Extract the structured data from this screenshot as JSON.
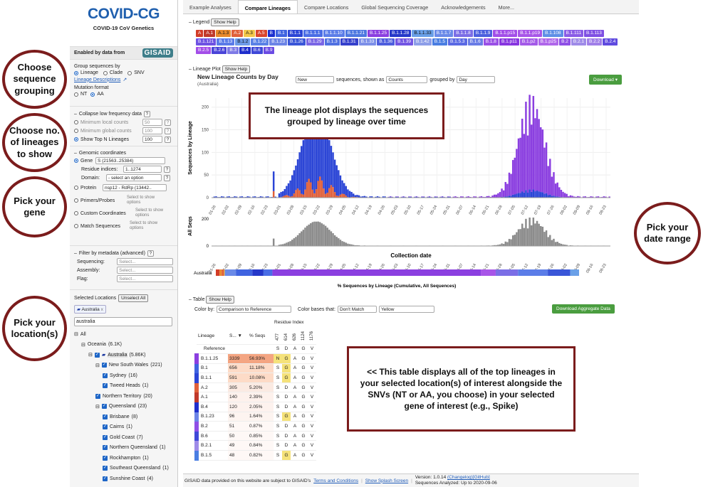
{
  "app": {
    "logo": "COVID-CG",
    "subtitle": "COVID-19 CoV Genetics",
    "enabled_by": "Enabled by data from",
    "gisaid": "GISAID"
  },
  "tabs": [
    "Example Analyses",
    "Compare Lineages",
    "Compare Locations",
    "Global Sequencing Coverage",
    "Acknowledgements",
    "More..."
  ],
  "active_tab": 1,
  "sidebar": {
    "group_by_label": "Group sequences by",
    "group_options": [
      "Lineage",
      "Clade",
      "SNV"
    ],
    "lineage_desc": "Lineage Descriptions",
    "mutation_format_label": "Mutation format",
    "mutation_options": [
      "NT",
      "AA"
    ],
    "collapse_label": "Collapse low frequency data",
    "collapse_q": "?",
    "min_local": "Minimum local counts",
    "min_local_val": "50",
    "min_global": "Minimum global counts",
    "min_global_val": "100",
    "show_top": "Show Top N Lineages",
    "show_top_val": "100",
    "genomic_label": "Genomic coordinates",
    "gene_label": "Gene",
    "gene_val": "S  (21563..25384)",
    "residue_label": "Residue indices:",
    "residue_val": "1..1274",
    "domain_label": "Domain:",
    "domain_val": "- select an option",
    "protein_label": "Protein",
    "protein_val": "nsp12 - RdRp  (13442..",
    "primers_label": "Primers/Probes",
    "primers_hint": "Select to show options",
    "custom_label": "Custom Coordinates",
    "custom_hint": "Select to show options",
    "match_label": "Match Sequences",
    "match_hint": "Select to show options",
    "filter_label": "Filter by metadata (advanced)",
    "filters": [
      {
        "label": "Sequencing:",
        "val": "Select..."
      },
      {
        "label": "Assembly:",
        "val": "Select..."
      },
      {
        "label": "Flag:",
        "val": "Select..."
      }
    ],
    "selected_locations": "Selected Locations",
    "unselect_all": "Unselect All",
    "location_tag": "Australia",
    "location_tag_x": "x",
    "search_val": "australia",
    "tree": [
      {
        "label": "All",
        "count": "",
        "level": 0,
        "check": false,
        "exp": "⊟"
      },
      {
        "label": "Oceania",
        "count": "(6.1K)",
        "level": 1,
        "check": false,
        "exp": "⊟"
      },
      {
        "label": "Australia",
        "count": "(5.86K)",
        "level": 2,
        "check": true,
        "exp": "⊟",
        "hl": true
      },
      {
        "label": "New South Wales",
        "count": "(221)",
        "level": 3,
        "check": true,
        "exp": "⊟"
      },
      {
        "label": "Sydney",
        "count": "(16)",
        "level": 4,
        "check": true,
        "exp": ""
      },
      {
        "label": "Tweed Heads",
        "count": "(1)",
        "level": 4,
        "check": true,
        "exp": ""
      },
      {
        "label": "Northern Territory",
        "count": "(20)",
        "level": 3,
        "check": true,
        "exp": ""
      },
      {
        "label": "Queensland",
        "count": "(23)",
        "level": 3,
        "check": true,
        "exp": "⊟"
      },
      {
        "label": "Brisbane",
        "count": "(8)",
        "level": 4,
        "check": true,
        "exp": ""
      },
      {
        "label": "Cairns",
        "count": "(1)",
        "level": 4,
        "check": true,
        "exp": ""
      },
      {
        "label": "Gold Coast",
        "count": "(7)",
        "level": 4,
        "check": true,
        "exp": ""
      },
      {
        "label": "Northern Queensland",
        "count": "(1)",
        "level": 4,
        "check": true,
        "exp": ""
      },
      {
        "label": "Rockhampton",
        "count": "(1)",
        "level": 4,
        "check": true,
        "exp": ""
      },
      {
        "label": "Southeast Queensland",
        "count": "(1)",
        "level": 4,
        "check": true,
        "exp": ""
      },
      {
        "label": "Sunshine Coast",
        "count": "(4)",
        "level": 4,
        "check": true,
        "exp": ""
      }
    ]
  },
  "legend": {
    "title": "Legend",
    "help": "Show Help",
    "items": [
      {
        "l": "A",
        "c": "#d23c27",
        "t": "#fff"
      },
      {
        "l": "A.1",
        "c": "#c0392b",
        "t": "#fff"
      },
      {
        "l": "A.1.3",
        "c": "#e8892c",
        "t": "#111"
      },
      {
        "l": "A.2",
        "c": "#e0603a",
        "t": "#fff"
      },
      {
        "l": "A.3",
        "c": "#f2c84b",
        "t": "#111"
      },
      {
        "l": "A.5",
        "c": "#d9462d",
        "t": "#fff"
      },
      {
        "l": "B",
        "c": "#1a2fd0",
        "t": "#fff"
      },
      {
        "l": "B.1",
        "c": "#3f63e0",
        "t": "#fff"
      },
      {
        "l": "B.1.1",
        "c": "#2b45d6",
        "t": "#fff"
      },
      {
        "l": "B.1.1.1",
        "c": "#4a6de5",
        "t": "#fff"
      },
      {
        "l": "B.1.1.10",
        "c": "#5b7de8",
        "t": "#fff"
      },
      {
        "l": "B.1.1.21",
        "c": "#4d78e0",
        "t": "#fff"
      },
      {
        "l": "B.1.1.25",
        "c": "#8b3fe0",
        "t": "#fff"
      },
      {
        "l": "B.1.1.28",
        "c": "#2538c9",
        "t": "#fff"
      },
      {
        "l": "B.1.1.33",
        "c": "#6aa0e8",
        "t": "#111"
      },
      {
        "l": "B.1.1.7",
        "c": "#6a8ae8",
        "t": "#fff"
      },
      {
        "l": "B.1.1.8",
        "c": "#7b6ee6",
        "t": "#fff"
      },
      {
        "l": "B.1.1.9",
        "c": "#4b5fde",
        "t": "#fff"
      },
      {
        "l": "B.1.1.p15",
        "c": "#a24ee8",
        "t": "#fff"
      },
      {
        "l": "B.1.1.p19",
        "c": "#a855e8",
        "t": "#fff"
      },
      {
        "l": "B.1.108",
        "c": "#5f8fe6",
        "t": "#fff"
      },
      {
        "l": "B.1.111",
        "c": "#8a5ce6",
        "t": "#fff"
      },
      {
        "l": "B.1.113",
        "c": "#7f50e3",
        "t": "#fff"
      },
      {
        "l": "B.1.121",
        "c": "#6e52e3",
        "t": "#fff"
      },
      {
        "l": "B.1.13",
        "c": "#5a7be8",
        "t": "#fff"
      },
      {
        "l": "B.1.2",
        "c": "#6c9ae8",
        "t": "#111"
      },
      {
        "l": "B.1.22",
        "c": "#5a82e6",
        "t": "#fff"
      },
      {
        "l": "B.1.23",
        "c": "#6c84e6",
        "t": "#fff"
      },
      {
        "l": "B.1.26",
        "c": "#3a56d8",
        "t": "#fff"
      },
      {
        "l": "B.1.29",
        "c": "#7a66e5",
        "t": "#fff"
      },
      {
        "l": "B.1.3",
        "c": "#5071e2",
        "t": "#fff"
      },
      {
        "l": "B.1.31",
        "c": "#3540cc",
        "t": "#fff"
      },
      {
        "l": "B.1.33",
        "c": "#7c8fe8",
        "t": "#fff"
      },
      {
        "l": "B.1.36",
        "c": "#4e5ede",
        "t": "#fff"
      },
      {
        "l": "B.1.39",
        "c": "#7355e3",
        "t": "#fff"
      },
      {
        "l": "B.1.42",
        "c": "#8d9ee8",
        "t": "#fff"
      },
      {
        "l": "B.1.5",
        "c": "#4a7ee2",
        "t": "#fff"
      },
      {
        "l": "B.1.5.3",
        "c": "#5b6ae4",
        "t": "#fff"
      },
      {
        "l": "B.1.6",
        "c": "#6a7de6",
        "t": "#fff"
      },
      {
        "l": "B.1.8",
        "c": "#9a4fe6",
        "t": "#fff"
      },
      {
        "l": "B.1.p11",
        "c": "#8836e0",
        "t": "#fff"
      },
      {
        "l": "B.1.p2",
        "c": "#a45ae8",
        "t": "#fff"
      },
      {
        "l": "B.1.p25",
        "c": "#b067ea",
        "t": "#fff"
      },
      {
        "l": "B.2",
        "c": "#8f4fe6",
        "t": "#fff"
      },
      {
        "l": "B.2.1",
        "c": "#9f8be8",
        "t": "#fff"
      },
      {
        "l": "B.2.2",
        "c": "#a07fe8",
        "t": "#fff"
      },
      {
        "l": "B.2.4",
        "c": "#5f4adf",
        "t": "#fff"
      },
      {
        "l": "B.2.5",
        "c": "#a34ee8",
        "t": "#fff"
      },
      {
        "l": "B.2.6",
        "c": "#4a44d8",
        "t": "#fff"
      },
      {
        "l": "B.3",
        "c": "#7e7ae6",
        "t": "#fff"
      },
      {
        "l": "B.4",
        "c": "#1f2ecc",
        "t": "#fff"
      },
      {
        "l": "B.6",
        "c": "#3f48d8",
        "t": "#fff"
      },
      {
        "l": "B.9",
        "c": "#6b4be3",
        "t": "#fff"
      }
    ]
  },
  "plot": {
    "section": "Lineage Plot",
    "help": "Show Help",
    "title": "New Lineage Counts by Day",
    "subtitle": "(Australia)",
    "select1": "New",
    "text1": "sequences, shown as",
    "select2": "Counts",
    "text2": "grouped by",
    "select3": "Day",
    "download": "Download ▾",
    "ylabel": "Sequences by Lineage",
    "ylabel2": "All Seqs",
    "xlabel": "Collection date",
    "bar_label": "Australia",
    "cum_label": "% Sequences by Lineage (Cumulative, All Sequences)"
  },
  "table": {
    "section": "Table",
    "help": "Show Help",
    "color_by": "Color by:",
    "color_by_val": "Comparison to Reference",
    "color_bases": "Color bases that:",
    "cb_val": "Don't Match",
    "color_val": "Yellow",
    "download": "Download Aggregate Data",
    "residue_index": "Residue Index",
    "headers": [
      "Lineage",
      "S... ▼",
      "% Seqs"
    ],
    "positions": [
      "477",
      "614",
      "626",
      "1124",
      "1176"
    ],
    "reference": [
      "S",
      "D",
      "A",
      "G",
      "V"
    ],
    "rows": [
      {
        "name": "B.1.1.25",
        "color": "#8b3fe0",
        "count": "3339",
        "pct": "56.93%",
        "bases": [
          "N",
          "G",
          "A",
          "G",
          "V"
        ],
        "hl": [
          0,
          1
        ],
        "heat": "#f4a582"
      },
      {
        "name": "B.1",
        "color": "#3f63e0",
        "count": "656",
        "pct": "11.18%",
        "bases": [
          "S",
          "G",
          "A",
          "G",
          "V"
        ],
        "hl": [
          1
        ],
        "heat": "#fddbc7"
      },
      {
        "name": "B.1.1",
        "color": "#2b45d6",
        "count": "591",
        "pct": "10.08%",
        "bases": [
          "S",
          "G",
          "A",
          "G",
          "V"
        ],
        "hl": [
          1
        ],
        "heat": "#fddbc7"
      },
      {
        "name": "A.2",
        "color": "#e0603a",
        "count": "305",
        "pct": "5.20%",
        "bases": [
          "S",
          "D",
          "A",
          "G",
          "V"
        ],
        "hl": [],
        "heat": "#fbeae2"
      },
      {
        "name": "A.1",
        "color": "#c0392b",
        "count": "140",
        "pct": "2.39%",
        "bases": [
          "S",
          "D",
          "A",
          "G",
          "V"
        ],
        "hl": [],
        "heat": "#fdf1ec"
      },
      {
        "name": "B.4",
        "color": "#1f2ecc",
        "count": "120",
        "pct": "2.05%",
        "bases": [
          "S",
          "D",
          "A",
          "G",
          "V"
        ],
        "hl": [],
        "heat": "#fdf2ee"
      },
      {
        "name": "B.1.23",
        "color": "#6c84e6",
        "count": "96",
        "pct": "1.64%",
        "bases": [
          "S",
          "G",
          "A",
          "G",
          "V"
        ],
        "hl": [
          1
        ],
        "heat": "#fdf4f0"
      },
      {
        "name": "B.2",
        "color": "#8f4fe6",
        "count": "51",
        "pct": "0.87%",
        "bases": [
          "S",
          "D",
          "A",
          "G",
          "V"
        ],
        "hl": [],
        "heat": "#fef8f6"
      },
      {
        "name": "B.6",
        "color": "#3f48d8",
        "count": "50",
        "pct": "0.85%",
        "bases": [
          "S",
          "D",
          "A",
          "G",
          "V"
        ],
        "hl": [],
        "heat": "#fef8f6"
      },
      {
        "name": "B.2.1",
        "color": "#9f8be8",
        "count": "49",
        "pct": "0.84%",
        "bases": [
          "S",
          "D",
          "A",
          "G",
          "V"
        ],
        "hl": [],
        "heat": "#fef8f6"
      },
      {
        "name": "B.1.5",
        "color": "#4a7ee2",
        "count": "48",
        "pct": "0.82%",
        "bases": [
          "S",
          "G",
          "A",
          "G",
          "V"
        ],
        "hl": [
          1
        ],
        "heat": "#fef8f6"
      }
    ]
  },
  "footer": {
    "gisaid_text": "GISAID data provided on this website are subject to GISAID's",
    "terms": "Terms and Conditions",
    "splash": "Show Splash Screen",
    "version": "Version: 1.0.14",
    "changelog": "(Changelog)",
    "github": "[GitHub]",
    "analyzed": "Sequences Analyzed: Up to 2020-09-06"
  },
  "callouts": {
    "c1": "Choose sequence grouping",
    "c2": "Choose no. of lineages to show",
    "c3": "Pick your gene",
    "c4": "Pick your location(s)",
    "c5": "Pick your date range",
    "box1": "The lineage plot displays the sequences grouped by lineage over time",
    "box2": "<< This table displays all of the top lineages in your selected location(s) of interest alongside the SNVs (NT or AA, you choose) in your selected gene of interest (e.g., Spike)"
  },
  "chart_data": {
    "type": "bar",
    "title": "New Lineage Counts by Day",
    "subtitle": "(Australia)",
    "xlabel": "Collection date",
    "ylabel": "Sequences by Lineage",
    "ylim": [
      0,
      220
    ],
    "yticks": [
      0,
      50,
      100,
      150,
      200
    ],
    "xticks": [
      "01-26",
      "02-02",
      "02-09",
      "02-16",
      "02-23",
      "03-01",
      "03-08",
      "03-15",
      "03-22",
      "03-29",
      "04-05",
      "04-12",
      "04-19",
      "04-26",
      "05-03",
      "05-10",
      "05-17",
      "05-24",
      "05-31",
      "06-07",
      "06-14",
      "06-21",
      "06-28",
      "07-05",
      "07-12",
      "07-19",
      "07-26",
      "08-02",
      "08-09",
      "08-16",
      "08-23"
    ],
    "series_shown": [
      "A lineages (orange/red)",
      "B lineages (blue)",
      "B.1.1.25 (purple)"
    ],
    "lower_ylabel": "All Seqs",
    "lower_yticks": [
      0,
      200
    ]
  }
}
